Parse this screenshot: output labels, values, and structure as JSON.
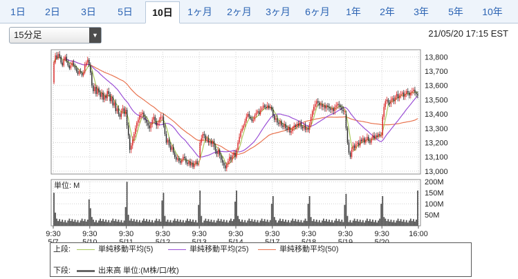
{
  "tabs": [
    {
      "label": "1日",
      "active": false
    },
    {
      "label": "2日",
      "active": false
    },
    {
      "label": "3日",
      "active": false
    },
    {
      "label": "5日",
      "active": false
    },
    {
      "label": "10日",
      "active": true
    },
    {
      "label": "1ヶ月",
      "active": false
    },
    {
      "label": "2ヶ月",
      "active": false
    },
    {
      "label": "3ヶ月",
      "active": false
    },
    {
      "label": "6ヶ月",
      "active": false
    },
    {
      "label": "1年",
      "active": false
    },
    {
      "label": "2年",
      "active": false
    },
    {
      "label": "3年",
      "active": false
    },
    {
      "label": "5年",
      "active": false
    },
    {
      "label": "10年",
      "active": false
    }
  ],
  "interval_select": {
    "value": "15分足"
  },
  "timestamp": "21/05/20 17:15 EST",
  "colors": {
    "ma5": "#a8c85a",
    "ma25": "#9a4fd6",
    "ma50": "#e8734f",
    "up": "#d92020",
    "down": "#222222",
    "volume": "#555555"
  },
  "legend": {
    "upper_label": "上段:",
    "lower_label": "下段:",
    "ma5": "単純移動平均(5)",
    "ma25": "単純移動平均(25)",
    "ma50": "単純移動平均(50)",
    "volume": "出来高 単位:(M株/口/枚)"
  },
  "chart_data": [
    {
      "type": "candlestick",
      "xlabels": [
        {
          "t": "9:30",
          "d": "5/7"
        },
        {
          "t": "9:30",
          "d": "5/10"
        },
        {
          "t": "9:30",
          "d": "5/11"
        },
        {
          "t": "9:30",
          "d": "5/12"
        },
        {
          "t": "9:30",
          "d": "5/13"
        },
        {
          "t": "9:30",
          "d": "5/14"
        },
        {
          "t": "9:30",
          "d": "5/17"
        },
        {
          "t": "9:30",
          "d": "5/18"
        },
        {
          "t": "9:30",
          "d": "5/19"
        },
        {
          "t": "9:30",
          "d": "5/20"
        },
        {
          "t": "16:00",
          "d": ""
        }
      ],
      "yticks": [
        "13,800",
        "13,700",
        "13,600",
        "13,500",
        "13,400",
        "13,300",
        "13,200",
        "13,100",
        "13,000"
      ],
      "ylim": [
        12980,
        13850
      ],
      "days": [
        {
          "open": 13620,
          "close": 13740,
          "path": [
            13620,
            13760,
            13810,
            13790,
            13820,
            13800,
            13760,
            13740,
            13780,
            13800,
            13770,
            13740,
            13720,
            13740,
            13760,
            13740,
            13720,
            13700,
            13680,
            13700,
            13690,
            13670,
            13690,
            13740,
            13760,
            13780,
            13740
          ]
        },
        {
          "open": 13740,
          "close": 13430,
          "path": [
            13740,
            13690,
            13600,
            13560,
            13590,
            13540,
            13580,
            13550,
            13520,
            13550,
            13500,
            13530,
            13510,
            13560,
            13540,
            13490,
            13520,
            13460,
            13480,
            13420,
            13440,
            13400,
            13380,
            13420,
            13440,
            13400,
            13430
          ]
        },
        {
          "open": 13430,
          "close": 13380,
          "path": [
            13430,
            13320,
            13250,
            13150,
            13180,
            13220,
            13260,
            13300,
            13340,
            13360,
            13390,
            13400,
            13410,
            13380,
            13360,
            13340,
            13320,
            13300,
            13330,
            13360,
            13380,
            13350,
            13320,
            13340,
            13360,
            13380,
            13380
          ]
        },
        {
          "open": 13380,
          "close": 13050,
          "path": [
            13380,
            13320,
            13260,
            13200,
            13220,
            13180,
            13150,
            13170,
            13130,
            13100,
            13080,
            13090,
            13070,
            13060,
            13080,
            13100,
            13090,
            13060,
            13050,
            13070,
            13040,
            13060,
            13030,
            13050,
            13070,
            13050,
            13050
          ]
        },
        {
          "open": 13050,
          "close": 13100,
          "path": [
            13100,
            13200,
            13230,
            13260,
            13250,
            13220,
            13230,
            13200,
            13210,
            13190,
            13210,
            13170,
            13140,
            13120,
            13150,
            13110,
            13080,
            13060,
            13040,
            13020,
            13050,
            13070,
            13100,
            13080,
            13110,
            13130,
            13100
          ]
        },
        {
          "open": 13100,
          "close": 13430,
          "path": [
            13100,
            13150,
            13200,
            13240,
            13280,
            13300,
            13320,
            13350,
            13380,
            13400,
            13380,
            13370,
            13350,
            13360,
            13390,
            13410,
            13420,
            13400,
            13430,
            13440,
            13460,
            13450,
            13440,
            13460,
            13440,
            13450,
            13430
          ]
        },
        {
          "open": 13430,
          "close": 13290,
          "path": [
            13430,
            13390,
            13360,
            13370,
            13340,
            13330,
            13350,
            13320,
            13310,
            13330,
            13300,
            13290,
            13310,
            13270,
            13280,
            13300,
            13320,
            13310,
            13330,
            13320,
            13340,
            13310,
            13300,
            13320,
            13290,
            13300,
            13290
          ]
        },
        {
          "open": 13290,
          "close": 13420,
          "path": [
            13290,
            13330,
            13380,
            13420,
            13450,
            13470,
            13490,
            13480,
            13460,
            13470,
            13450,
            13460,
            13440,
            13460,
            13450,
            13440,
            13430,
            13440,
            13420,
            13450,
            13460,
            13470,
            13460,
            13450,
            13430,
            13420,
            13420
          ]
        },
        {
          "open": 13420,
          "close": 13250,
          "path": [
            13400,
            13300,
            13200,
            13130,
            13100,
            13150,
            13180,
            13160,
            13190,
            13200,
            13180,
            13220,
            13210,
            13230,
            13200,
            13220,
            13240,
            13210,
            13200,
            13230,
            13250,
            13230,
            13250,
            13240,
            13260,
            13250,
            13250
          ]
        },
        {
          "open": 13250,
          "close": 13530,
          "path": [
            13250,
            13380,
            13450,
            13490,
            13500,
            13480,
            13470,
            13500,
            13510,
            13490,
            13520,
            13540,
            13510,
            13530,
            13540,
            13550,
            13520,
            13540,
            13560,
            13550,
            13530,
            13550,
            13560,
            13570,
            13550,
            13540,
            13530
          ]
        }
      ],
      "ma5_end": 13520,
      "ma25_end": 13500,
      "ma50_end": 13380
    },
    {
      "type": "bar",
      "name": "volume",
      "unit_label": "単位: M",
      "yticks": [
        "200M",
        "150M",
        "100M",
        "50M"
      ],
      "ylim": [
        0,
        210
      ],
      "day_spikes": [
        [
          150,
          60,
          120
        ],
        [
          80,
          40,
          85
        ],
        [
          200,
          50,
          115
        ],
        [
          150,
          45,
          95
        ],
        [
          160,
          45,
          110
        ],
        [
          160,
          45,
          100
        ],
        [
          135,
          40,
          100
        ],
        [
          135,
          40,
          95
        ],
        [
          145,
          45,
          100
        ],
        [
          135,
          40,
          160
        ]
      ]
    }
  ]
}
